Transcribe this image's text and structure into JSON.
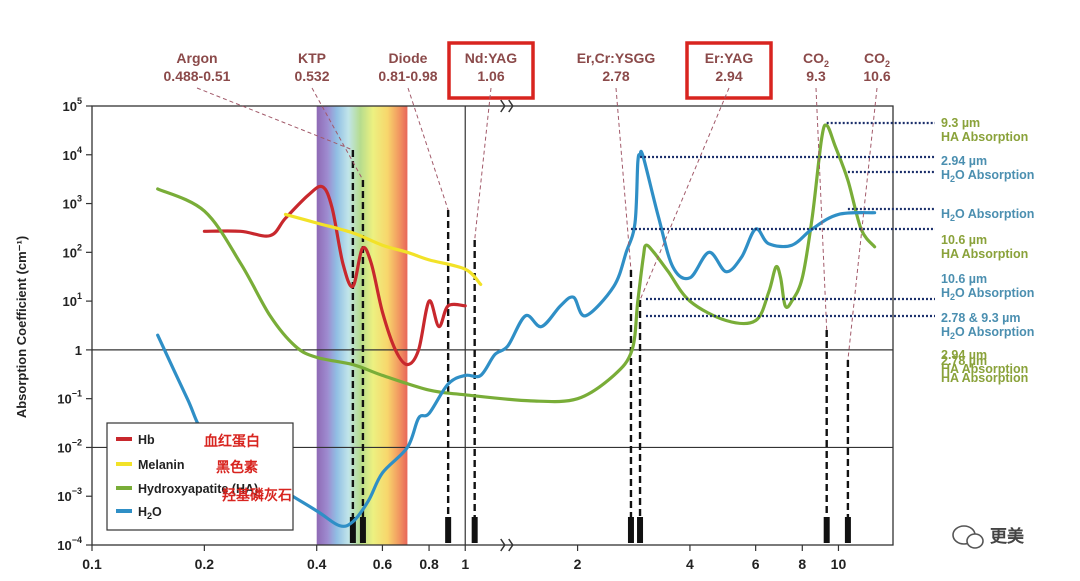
{
  "chart_data": {
    "type": "line",
    "title": "",
    "xlabel": "",
    "ylabel": "Absorption Coefficient (cm⁻¹)",
    "x_scale": "log",
    "y_scale": "log",
    "xlim": [
      0.1,
      14
    ],
    "ylim": [
      0.0001,
      100000
    ],
    "x_ticks": [
      {
        "value": 0.1,
        "label": "0.1"
      },
      {
        "value": 0.2,
        "label": "0.2"
      },
      {
        "value": 0.4,
        "label": "0.4"
      },
      {
        "value": 0.6,
        "label": "0.6"
      },
      {
        "value": 0.8,
        "label": "0.8"
      },
      {
        "value": 1,
        "label": "1"
      },
      {
        "value": 2,
        "label": "2"
      },
      {
        "value": 4,
        "label": "4"
      },
      {
        "value": 6,
        "label": "6"
      },
      {
        "value": 8,
        "label": "8"
      },
      {
        "value": 10,
        "label": "10"
      }
    ],
    "y_ticks": [
      {
        "value": 100000,
        "base": "10",
        "exp": "5"
      },
      {
        "value": 10000,
        "base": "10",
        "exp": "4"
      },
      {
        "value": 1000,
        "base": "10",
        "exp": "3"
      },
      {
        "value": 100,
        "base": "10",
        "exp": "2"
      },
      {
        "value": 10,
        "base": "10",
        "exp": "1"
      },
      {
        "value": 1,
        "base": "1",
        "exp": ""
      },
      {
        "value": 0.1,
        "base": "10",
        "exp": "−1"
      },
      {
        "value": 0.01,
        "base": "10",
        "exp": "−2"
      },
      {
        "value": 0.001,
        "base": "10",
        "exp": "−3"
      },
      {
        "value": 0.0001,
        "base": "10",
        "exp": "−4"
      }
    ],
    "reference_lines_y": [
      1,
      0.01
    ],
    "reference_line_x": 1,
    "axis_break_at_x": 1.3,
    "visible_spectrum": [
      0.4,
      0.7
    ],
    "series": [
      {
        "name": "Hb",
        "color": "#c8282d",
        "points": [
          [
            0.2,
            270
          ],
          [
            0.25,
            270
          ],
          [
            0.3,
            220
          ],
          [
            0.33,
            500
          ],
          [
            0.38,
            1500
          ],
          [
            0.415,
            2200
          ],
          [
            0.44,
            800
          ],
          [
            0.47,
            60
          ],
          [
            0.5,
            20
          ],
          [
            0.53,
            120
          ],
          [
            0.56,
            60
          ],
          [
            0.6,
            6
          ],
          [
            0.65,
            1
          ],
          [
            0.7,
            0.5
          ],
          [
            0.75,
            1
          ],
          [
            0.8,
            10
          ],
          [
            0.85,
            3
          ],
          [
            0.9,
            8
          ],
          [
            1.0,
            8
          ]
        ]
      },
      {
        "name": "Melanin",
        "color": "#f2e228",
        "points": [
          [
            0.33,
            600
          ],
          [
            0.4,
            400
          ],
          [
            0.5,
            250
          ],
          [
            0.6,
            140
          ],
          [
            0.7,
            100
          ],
          [
            0.8,
            70
          ],
          [
            1.0,
            45
          ],
          [
            1.1,
            22
          ]
        ]
      },
      {
        "name": "Hydroxyapatite (HA)",
        "color": "#79ad38",
        "points": [
          [
            0.15,
            2000
          ],
          [
            0.2,
            700
          ],
          [
            0.25,
            60
          ],
          [
            0.3,
            5
          ],
          [
            0.35,
            1.2
          ],
          [
            0.4,
            0.7
          ],
          [
            0.5,
            0.5
          ],
          [
            0.6,
            0.3
          ],
          [
            0.8,
            0.15
          ],
          [
            1.0,
            0.12
          ],
          [
            1.5,
            0.09
          ],
          [
            2.0,
            0.1
          ],
          [
            2.5,
            0.3
          ],
          [
            2.8,
            1
          ],
          [
            2.9,
            10
          ],
          [
            3.0,
            80
          ],
          [
            3.05,
            140
          ],
          [
            3.2,
            100
          ],
          [
            3.5,
            40
          ],
          [
            4.0,
            10
          ],
          [
            5.0,
            4
          ],
          [
            6.0,
            4
          ],
          [
            6.5,
            15
          ],
          [
            6.8,
            50
          ],
          [
            7.0,
            30
          ],
          [
            7.2,
            8
          ],
          [
            7.5,
            10
          ],
          [
            8.0,
            30
          ],
          [
            8.5,
            500
          ],
          [
            9.0,
            20000
          ],
          [
            9.3,
            40000
          ],
          [
            9.8,
            15000
          ],
          [
            10.6,
            3000
          ],
          [
            11.5,
            300
          ],
          [
            12.5,
            130
          ]
        ]
      },
      {
        "name": "H2O",
        "legend_base": "H",
        "legend_sub": "2",
        "legend_tail": "O",
        "color": "#2f8fc6",
        "points": [
          [
            0.15,
            2
          ],
          [
            0.18,
            0.1
          ],
          [
            0.2,
            0.02
          ],
          [
            0.25,
            0.007
          ],
          [
            0.3,
            0.002
          ],
          [
            0.4,
            0.0005
          ],
          [
            0.46,
            0.00025
          ],
          [
            0.5,
            0.0003
          ],
          [
            0.55,
            0.0008
          ],
          [
            0.6,
            0.003
          ],
          [
            0.7,
            0.01
          ],
          [
            0.75,
            0.04
          ],
          [
            0.8,
            0.05
          ],
          [
            0.9,
            0.2
          ],
          [
            1.0,
            0.3
          ],
          [
            1.1,
            0.3
          ],
          [
            1.2,
            0.8
          ],
          [
            1.3,
            1.2
          ],
          [
            1.45,
            5
          ],
          [
            1.6,
            3
          ],
          [
            1.8,
            8
          ],
          [
            1.95,
            12
          ],
          [
            2.1,
            5
          ],
          [
            2.5,
            20
          ],
          [
            2.7,
            100
          ],
          [
            2.85,
            400
          ],
          [
            2.9,
            7000
          ],
          [
            2.94,
            10000
          ],
          [
            3.0,
            9000
          ],
          [
            3.3,
            500
          ],
          [
            3.6,
            50
          ],
          [
            4.0,
            30
          ],
          [
            4.5,
            100
          ],
          [
            5.0,
            40
          ],
          [
            5.5,
            80
          ],
          [
            6.0,
            300
          ],
          [
            6.5,
            150
          ],
          [
            7.5,
            140
          ],
          [
            8.5,
            300
          ],
          [
            10.0,
            600
          ],
          [
            12.5,
            650
          ]
        ]
      }
    ],
    "lasers": [
      {
        "name": "Argon",
        "wavelength": "0.488-0.51",
        "x": 0.5,
        "boxed": false
      },
      {
        "name": "KTP",
        "wavelength": "0.532",
        "x": 0.532,
        "boxed": false
      },
      {
        "name": "Diode",
        "wavelength": "0.81-0.98",
        "x": 0.9,
        "boxed": false
      },
      {
        "name": "Nd:YAG",
        "wavelength": "1.06",
        "x": 1.06,
        "boxed": true
      },
      {
        "name": "Er,Cr:YSGG",
        "wavelength": "2.78",
        "x": 2.78,
        "boxed": false
      },
      {
        "name": "Er:YAG",
        "wavelength": "2.94",
        "x": 2.94,
        "boxed": true
      },
      {
        "name": "CO",
        "name_sub": "2",
        "wavelength": "9.3",
        "x": 9.3,
        "boxed": false
      },
      {
        "name": "CO",
        "name_sub": "2",
        "wavelength": "10.6",
        "x": 10.6,
        "boxed": false
      }
    ],
    "right_annotations": [
      {
        "line1": "9.3 µm",
        "line2": "HA Absorption",
        "sub": "",
        "color": "green",
        "target_x": 9.3,
        "target_y": 40000
      },
      {
        "line1": "2.94 µm",
        "line2": "H",
        "sub": "2",
        "tail": "O Absorption",
        "color": "blue",
        "target_x": 2.94,
        "target_y": 10000
      },
      {
        "line1": "",
        "line2": "H",
        "sub": "2",
        "tail": "O Absorption",
        "color": "blue",
        "target_x": 10.6,
        "target_y": 600
      },
      {
        "line1": "10.6 µm",
        "line2": "HA Absorption",
        "sub": "",
        "color": "green",
        "target_x": 10.6,
        "target_y": 600
      },
      {
        "line1": "10.6 µm",
        "line2": "H",
        "sub": "2",
        "tail": "O Absorption",
        "color": "blue",
        "target_x": 2.78,
        "target_y": 250
      },
      {
        "line1": "2.78 & 9.3 µm",
        "line2": "H",
        "sub": "2",
        "tail": "O Absorption",
        "color": "blue",
        "target_x": 3.05,
        "target_y": 10
      },
      {
        "line1": "2.94 µm",
        "line2": "HA Absorption",
        "sub": "",
        "color": "green",
        "target_x": 3.05,
        "target_y": 4
      },
      {
        "line1": "2.78 µm",
        "line2": "HA Absorption",
        "sub": "",
        "color": "green",
        "target_x": 0,
        "target_y": 0
      }
    ],
    "legend": {
      "placement": "bottom-left",
      "entries": [
        {
          "label": "Hb",
          "color": "#c8282d",
          "note": "血红蛋白"
        },
        {
          "label": "Melanin",
          "color": "#f2e228",
          "note": "黑色素"
        },
        {
          "label": "Hydroxyapatite (HA)",
          "color": "#79ad38",
          "note": "羟基磷灰石"
        },
        {
          "label": "H2O",
          "base": "H",
          "sub": "2",
          "tail": "O",
          "color": "#2f8fc6",
          "note": ""
        }
      ]
    }
  },
  "watermark": "更美"
}
